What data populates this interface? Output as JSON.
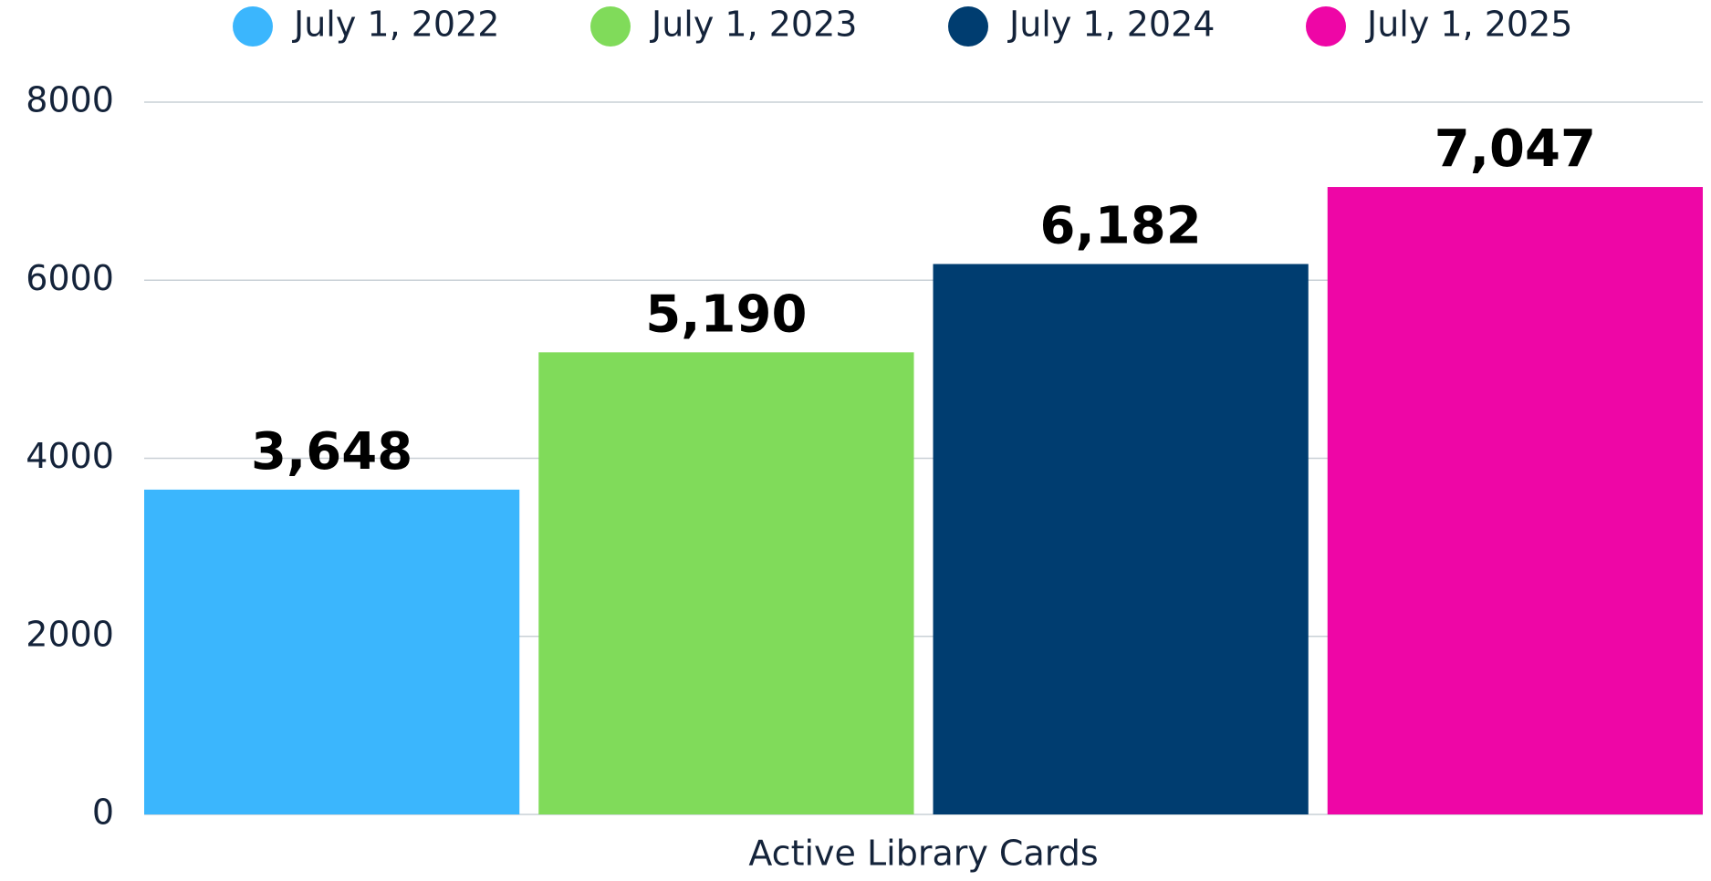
{
  "chart_data": {
    "type": "bar",
    "categories": [
      "Active Library Cards"
    ],
    "series": [
      {
        "name": "July 1, 2022",
        "color": "#3bb6fd",
        "values": [
          3648
        ],
        "value_labels": [
          "3,648"
        ]
      },
      {
        "name": "July 1, 2023",
        "color": "#80db5a",
        "values": [
          5190
        ],
        "value_labels": [
          "5,190"
        ]
      },
      {
        "name": "July 1, 2024",
        "color": "#003d70",
        "values": [
          6182
        ],
        "value_labels": [
          "6,182"
        ]
      },
      {
        "name": "July 1, 2025",
        "color": "#ee06a6",
        "values": [
          7047
        ],
        "value_labels": [
          "7,047"
        ]
      }
    ],
    "ylim": [
      0,
      8000
    ],
    "yticks": [
      0,
      2000,
      4000,
      6000,
      8000
    ],
    "grid": true,
    "legend": "top"
  }
}
